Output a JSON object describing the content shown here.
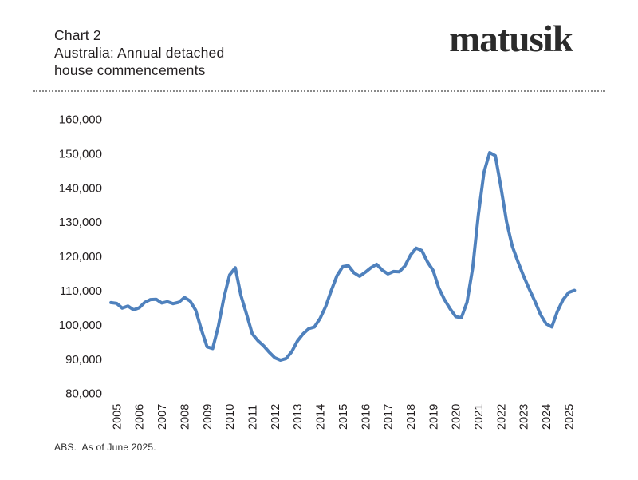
{
  "header": {
    "title_line1": "Chart 2",
    "title_line2": "Australia: Annual detached",
    "title_line3": "house commencements",
    "logo_text": "matusik"
  },
  "footnote": "ABS.  As of June 2025.",
  "colors": {
    "line": "#4F81BD",
    "text": "#231F20",
    "divider": "#8A8A8A",
    "background": "#FFFFFF"
  },
  "chart_data": {
    "type": "line",
    "title": "Australia: Annual detached house commencements",
    "subtitle": "Chart 2",
    "source_note": "ABS.  As of June 2025.",
    "grid": false,
    "legend": false,
    "x_unit": "year (quarterly moving-annual-total observations)",
    "x_start": 2004.75,
    "x_step": 0.25,
    "x_tick_labels": [
      "2005",
      "2006",
      "2007",
      "2008",
      "2009",
      "2010",
      "2011",
      "2012",
      "2013",
      "2014",
      "2015",
      "2016",
      "2017",
      "2018",
      "2019",
      "2020",
      "2021",
      "2022",
      "2023",
      "2024",
      "2025"
    ],
    "x_tick_values": [
      2005,
      2006,
      2007,
      2008,
      2009,
      2010,
      2011,
      2012,
      2013,
      2014,
      2015,
      2016,
      2017,
      2018,
      2019,
      2020,
      2021,
      2022,
      2023,
      2024,
      2025
    ],
    "ylim": [
      80000,
      160000
    ],
    "y_tick_values": [
      160000,
      150000,
      140000,
      130000,
      120000,
      110000,
      100000,
      90000,
      80000
    ],
    "y_tick_labels": [
      "160,000",
      "150,000",
      "140,000",
      "130,000",
      "120,000",
      "110,000",
      "100,000",
      "90,000",
      "80,000"
    ],
    "series": [
      {
        "name": "Annual detached house commencements",
        "color": "#4F81BD",
        "values": [
          106400,
          106200,
          104800,
          105400,
          104300,
          104900,
          106500,
          107300,
          107400,
          106300,
          106700,
          106100,
          106500,
          107900,
          106900,
          104200,
          98500,
          93500,
          93000,
          99500,
          108000,
          114500,
          116600,
          108500,
          103000,
          97300,
          95300,
          93800,
          91900,
          90300,
          89600,
          90100,
          92100,
          95200,
          97300,
          98800,
          99300,
          101800,
          105300,
          110000,
          114300,
          116900,
          117200,
          115100,
          114100,
          115300,
          116600,
          117600,
          115900,
          114800,
          115500,
          115400,
          117100,
          120300,
          122300,
          121600,
          118300,
          115800,
          110700,
          107300,
          104600,
          102300,
          102000,
          106500,
          116500,
          132000,
          144500,
          150200,
          149300,
          140000,
          130000,
          122900,
          118400,
          114200,
          110400,
          106800,
          102900,
          100200,
          99300,
          103900,
          107300,
          109400,
          110000
        ]
      }
    ]
  }
}
